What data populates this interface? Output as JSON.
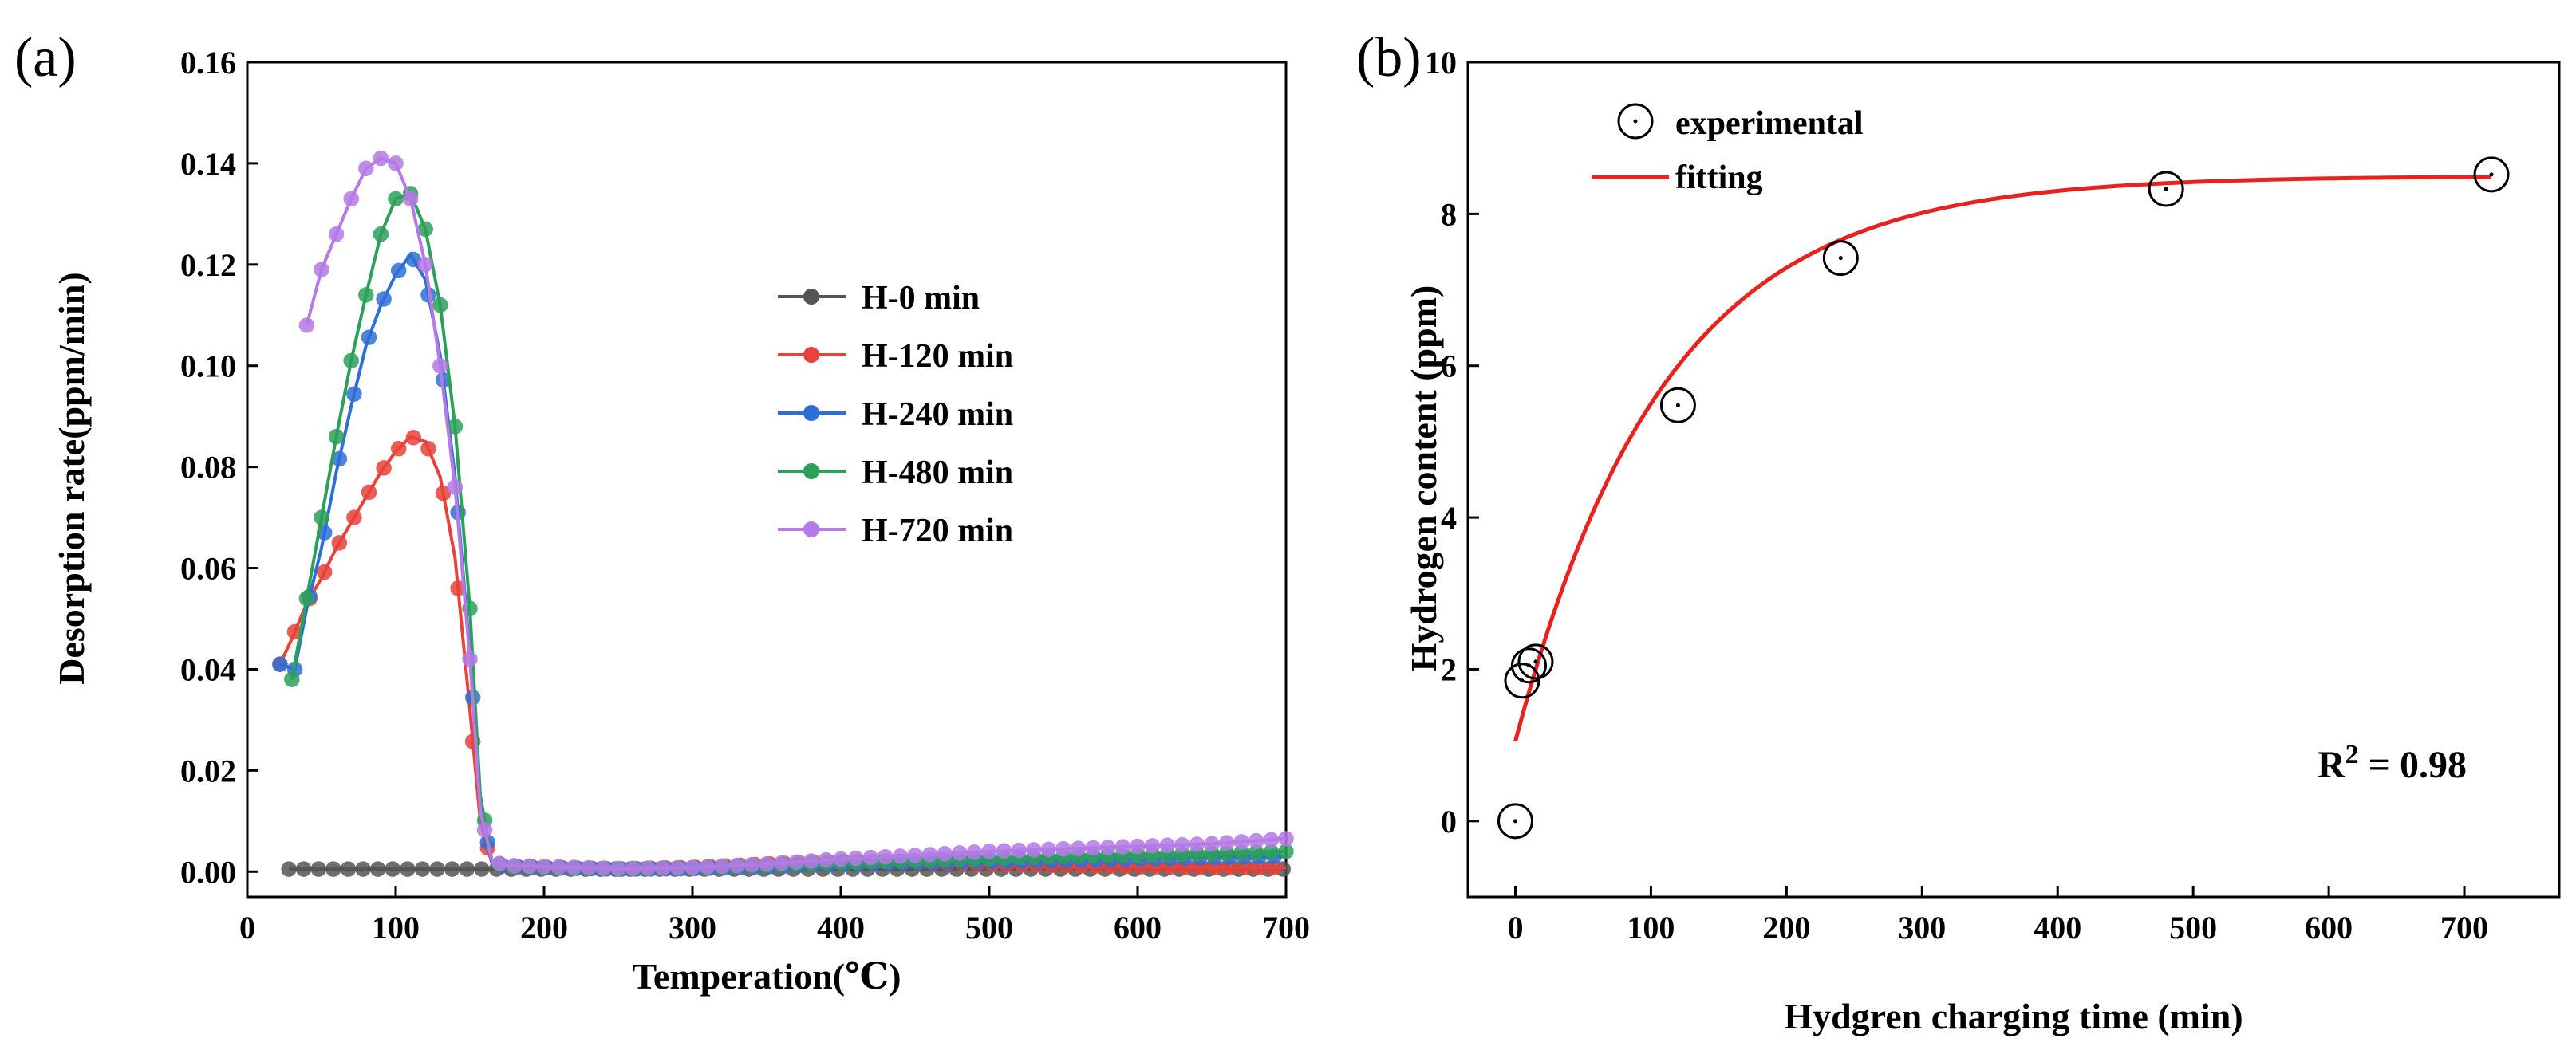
{
  "chart_data": [
    {
      "panel": "(a)",
      "type": "line",
      "title": "",
      "xlabel": "Temperation(℃)",
      "ylabel": "Desorption rate(ppm/min)",
      "xlim": [
        0,
        700
      ],
      "ylim": [
        -0.005,
        0.16
      ],
      "xticks": [
        "0",
        "100",
        "200",
        "300",
        "400",
        "500",
        "600",
        "700"
      ],
      "yticks": [
        "0.00",
        "0.02",
        "0.04",
        "0.06",
        "0.08",
        "0.10",
        "0.12",
        "0.14",
        "0.16"
      ],
      "legend_position": "center-right",
      "series": [
        {
          "name": "H-0 min",
          "color": "#555555",
          "marker_every": 10,
          "x": [
            28,
            700
          ],
          "y": [
            0.0005,
            0.0005
          ]
        },
        {
          "name": "H-120 min",
          "color": "#e8423a",
          "marker_every": 10,
          "x": [
            22,
            30,
            40,
            50,
            60,
            70,
            80,
            90,
            100,
            110,
            120,
            130,
            140,
            150,
            157,
            165,
            175,
            200,
            250,
            300,
            350,
            400,
            450,
            500,
            550,
            600,
            650,
            700
          ],
          "y": [
            0.041,
            0.046,
            0.053,
            0.058,
            0.064,
            0.069,
            0.074,
            0.079,
            0.083,
            0.086,
            0.085,
            0.078,
            0.062,
            0.032,
            0.01,
            0.0015,
            0.001,
            0.0008,
            0.0005,
            0.0008,
            0.0015,
            0.002,
            0.0018,
            0.0015,
            0.0012,
            0.001,
            0.0008,
            0.0008
          ]
        },
        {
          "name": "H-240 min",
          "color": "#2e6fd6",
          "marker_every": 10,
          "x": [
            22,
            32,
            40,
            50,
            60,
            70,
            80,
            90,
            100,
            110,
            120,
            130,
            140,
            150,
            157,
            165,
            175,
            200,
            250,
            300,
            350,
            400,
            450,
            500,
            550,
            600,
            650,
            700
          ],
          "y": [
            0.041,
            0.04,
            0.052,
            0.064,
            0.079,
            0.092,
            0.104,
            0.112,
            0.118,
            0.122,
            0.117,
            0.102,
            0.078,
            0.043,
            0.013,
            0.0015,
            0.001,
            0.0008,
            0.0005,
            0.0006,
            0.001,
            0.0015,
            0.0018,
            0.002,
            0.0022,
            0.0025,
            0.0028,
            0.003
          ]
        },
        {
          "name": "H-480 min",
          "color": "#2ca05a",
          "marker_every": 10,
          "x": [
            30,
            40,
            50,
            60,
            70,
            80,
            90,
            100,
            110,
            120,
            130,
            140,
            150,
            157,
            165,
            175,
            200,
            250,
            300,
            350,
            400,
            450,
            500,
            550,
            600,
            650,
            700
          ],
          "y": [
            0.038,
            0.054,
            0.07,
            0.086,
            0.101,
            0.114,
            0.126,
            0.133,
            0.134,
            0.127,
            0.112,
            0.088,
            0.052,
            0.015,
            0.002,
            0.001,
            0.0008,
            0.0005,
            0.0008,
            0.0012,
            0.0018,
            0.0022,
            0.0026,
            0.003,
            0.0033,
            0.0036,
            0.004
          ]
        },
        {
          "name": "H-720 min",
          "color": "#b47ae6",
          "marker_every": 10,
          "x": [
            40,
            50,
            60,
            70,
            80,
            90,
            100,
            110,
            120,
            130,
            140,
            150,
            157,
            165,
            175,
            200,
            250,
            300,
            350,
            400,
            450,
            500,
            550,
            600,
            650,
            700
          ],
          "y": [
            0.108,
            0.119,
            0.126,
            0.133,
            0.139,
            0.141,
            0.14,
            0.133,
            0.12,
            0.1,
            0.076,
            0.042,
            0.012,
            0.002,
            0.0012,
            0.001,
            0.0006,
            0.0008,
            0.0015,
            0.0025,
            0.0032,
            0.004,
            0.0045,
            0.005,
            0.0055,
            0.0065
          ]
        }
      ]
    },
    {
      "panel": "(b)",
      "type": "scatter",
      "title": "",
      "xlabel": "Hydgren charging time (min)",
      "ylabel": "Hydrogen content (ppm)",
      "xlim": [
        -35,
        770
      ],
      "ylim": [
        -1,
        10
      ],
      "xticks": [
        "0",
        "100",
        "200",
        "300",
        "400",
        "500",
        "600",
        "700"
      ],
      "yticks": [
        "0",
        "2",
        "4",
        "6",
        "8",
        "10"
      ],
      "legend_position": "top-left",
      "annotation": {
        "base": "R",
        "sup": "2",
        "rest": " = 0.98"
      },
      "series": [
        {
          "name": "experimental",
          "style": "open-circle",
          "color": "#000000",
          "x": [
            0,
            5,
            10,
            15,
            120,
            240,
            480,
            720
          ],
          "y": [
            0.0,
            1.85,
            2.05,
            2.1,
            5.48,
            7.42,
            8.33,
            8.52
          ]
        },
        {
          "name": "fitting",
          "style": "line",
          "color": "#e8231f",
          "model": {
            "a": 8.5,
            "b": 7.45,
            "tau": 110
          },
          "x_range": [
            0,
            720
          ]
        }
      ]
    }
  ]
}
